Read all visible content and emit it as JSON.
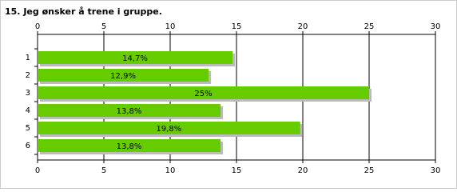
{
  "chart_data": {
    "type": "hbar",
    "title": "15. Jeg ønsker å trene i gruppe.",
    "categories": [
      "1",
      "2",
      "3",
      "4",
      "5",
      "6"
    ],
    "values": [
      14.7,
      12.9,
      25,
      13.8,
      19.8,
      13.8
    ],
    "value_labels": [
      "14,7%",
      "12,9%",
      "25%",
      "13,8%",
      "19,8%",
      "13,8%"
    ],
    "color": "#66cc00",
    "xlim": [
      0,
      30
    ],
    "xticks": [
      0,
      5,
      10,
      15,
      20,
      25,
      30
    ],
    "grid": true
  }
}
